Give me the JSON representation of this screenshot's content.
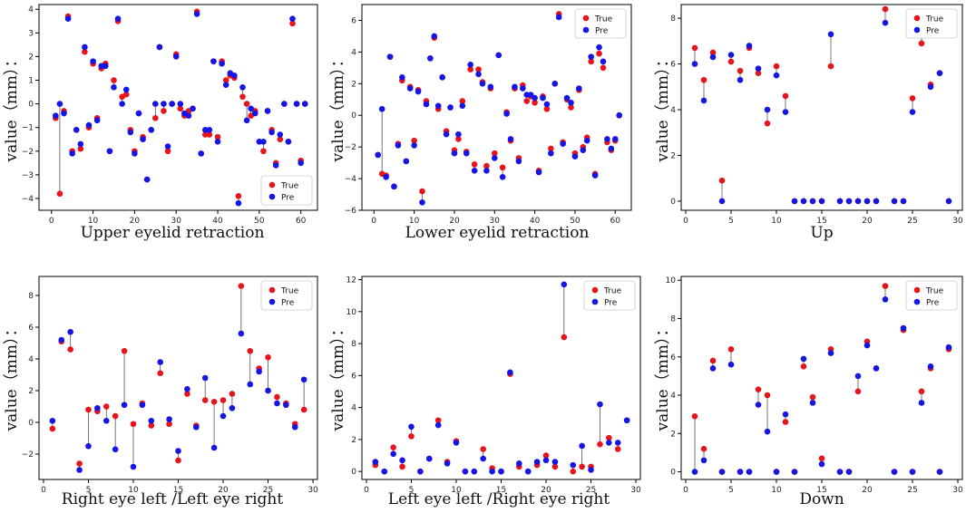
{
  "colors": {
    "true": "#e8141c",
    "pre": "#1515e6",
    "stem": "#555555"
  },
  "chart_data": [
    {
      "type": "scatter",
      "xlabel": "Upper eyelid retraction",
      "ylabel": "value（mm）：",
      "xlim": [
        -3,
        64
      ],
      "ylim": [
        -4.5,
        4.2
      ],
      "xticks": [
        0,
        10,
        20,
        30,
        40,
        50,
        60
      ],
      "yticks": [
        -4,
        -3,
        -2,
        -1,
        0,
        1,
        2,
        3,
        4
      ],
      "legend": "bottom-right",
      "series": [
        {
          "name": "True",
          "x": [
            1,
            2,
            3,
            4,
            5,
            6,
            7,
            8,
            9,
            10,
            11,
            12,
            13,
            14,
            15,
            16,
            17,
            18,
            19,
            20,
            21,
            22,
            23,
            24,
            25,
            26,
            27,
            28,
            29,
            30,
            31,
            32,
            33,
            34,
            35,
            36,
            37,
            38,
            39,
            40,
            41,
            42,
            43,
            44,
            45,
            46,
            47,
            48,
            49,
            50,
            51,
            52,
            53,
            54,
            55,
            56,
            57,
            58,
            59,
            60,
            61
          ],
          "values": [
            -0.6,
            -3.8,
            -0.3,
            3.7,
            -2.0,
            -1.1,
            -1.9,
            2.2,
            -1.0,
            1.7,
            -0.6,
            1.5,
            1.7,
            -2.0,
            1.0,
            3.5,
            0.3,
            0.4,
            -1.1,
            -2.0,
            -0.4,
            -1.4,
            -3.2,
            -1.1,
            -0.6,
            2.4,
            -0.3,
            -2.0,
            0,
            2.1,
            -0.2,
            -0.5,
            -0.3,
            -0.2,
            3.9,
            -2.1,
            -1.3,
            -1.3,
            1.8,
            -1.4,
            1.8,
            1.0,
            1.2,
            1.1,
            -3.9,
            0.3,
            0,
            -0.5,
            -0.3,
            -1.6,
            -2.0,
            -0.3,
            -1.1,
            -2.5,
            -1.5,
            0,
            -1.6,
            3.4,
            0,
            -2.4,
            0
          ]
        },
        {
          "name": "Pre",
          "x": [
            1,
            2,
            3,
            4,
            5,
            6,
            7,
            8,
            9,
            10,
            11,
            12,
            13,
            14,
            15,
            16,
            17,
            18,
            19,
            20,
            21,
            22,
            23,
            24,
            25,
            26,
            27,
            28,
            29,
            30,
            31,
            32,
            33,
            34,
            35,
            36,
            37,
            38,
            39,
            40,
            41,
            42,
            43,
            44,
            45,
            46,
            47,
            48,
            49,
            50,
            51,
            52,
            53,
            54,
            55,
            56,
            57,
            58,
            59,
            60,
            61
          ],
          "values": [
            -0.5,
            0,
            -0.4,
            3.6,
            -2.1,
            -1.1,
            -1.7,
            2.4,
            -0.9,
            1.8,
            -0.7,
            1.6,
            1.6,
            -2.0,
            0.7,
            3.6,
            0,
            0.6,
            -1.2,
            -2.1,
            -0.4,
            -1.5,
            -3.2,
            -1.1,
            0,
            2.4,
            0,
            -1.8,
            0,
            2.0,
            0,
            -0.4,
            -0.5,
            -0.2,
            3.8,
            -2.1,
            -1.1,
            -1.1,
            1.8,
            -1.6,
            1.7,
            0.8,
            1.3,
            1.2,
            -4.2,
            0.7,
            -0.7,
            -0.2,
            -0.4,
            -1.6,
            -1.6,
            -0.3,
            -1.2,
            -2.6,
            -1.3,
            0,
            -1.6,
            3.6,
            0,
            -2.5,
            0
          ]
        }
      ]
    },
    {
      "type": "scatter",
      "xlabel": "Lower eyelid retraction",
      "ylabel": "value（mm）：",
      "xlim": [
        -3,
        64
      ],
      "ylim": [
        -6,
        7
      ],
      "xticks": [
        0,
        10,
        20,
        30,
        40,
        50,
        60
      ],
      "yticks": [
        -6,
        -4,
        -2,
        0,
        2,
        4,
        6
      ],
      "legend": "top-right",
      "series": [
        {
          "name": "True",
          "x": [
            1,
            2,
            3,
            4,
            5,
            6,
            7,
            8,
            9,
            10,
            11,
            12,
            13,
            14,
            15,
            16,
            17,
            18,
            19,
            20,
            21,
            22,
            23,
            24,
            25,
            26,
            27,
            28,
            29,
            30,
            31,
            32,
            33,
            34,
            35,
            36,
            37,
            38,
            39,
            40,
            41,
            42,
            43,
            44,
            45,
            46,
            47,
            48,
            49,
            50,
            51,
            52,
            53,
            54,
            55,
            56,
            57,
            58,
            59,
            60,
            61
          ],
          "values": [
            -2.5,
            -3.7,
            -3.8,
            3.7,
            -4.5,
            -1.8,
            2.2,
            -2.9,
            1.8,
            -1.6,
            1.6,
            -4.8,
            0.9,
            3.6,
            4.9,
            0.4,
            2.4,
            -1.0,
            0.5,
            -2.2,
            -1.5,
            0.9,
            -2.3,
            2.9,
            -3.1,
            2.9,
            2.1,
            -3.2,
            1.7,
            -2.4,
            3.8,
            -3.3,
            0.2,
            -1.6,
            1.7,
            -2.7,
            1.9,
            0.9,
            1.2,
            0.8,
            -3.5,
            1.2,
            0.4,
            -2.1,
            2.0,
            6.4,
            -1.7,
            1.0,
            0.5,
            -2.4,
            1.6,
            -2.0,
            -1.4,
            3.4,
            -3.7,
            3.9,
            3.0,
            -1.7,
            -2.2,
            -1.6,
            0
          ]
        },
        {
          "name": "Pre",
          "x": [
            1,
            2,
            3,
            4,
            5,
            6,
            7,
            8,
            9,
            10,
            11,
            12,
            13,
            14,
            15,
            16,
            17,
            18,
            19,
            20,
            21,
            22,
            23,
            24,
            25,
            26,
            27,
            28,
            29,
            30,
            31,
            32,
            33,
            34,
            35,
            36,
            37,
            38,
            39,
            40,
            41,
            42,
            43,
            44,
            45,
            46,
            47,
            48,
            49,
            50,
            51,
            52,
            53,
            54,
            55,
            56,
            57,
            58,
            59,
            60,
            61
          ],
          "values": [
            -2.5,
            0.4,
            -3.9,
            3.7,
            -4.5,
            -1.9,
            2.4,
            -2.9,
            1.7,
            -1.9,
            1.5,
            -5.5,
            0.7,
            3.6,
            5.0,
            0.6,
            2.4,
            -1.2,
            0.5,
            -2.4,
            -1.2,
            0.6,
            -2.4,
            3.2,
            -3.5,
            2.6,
            2.0,
            -3.5,
            1.8,
            -2.7,
            3.8,
            -3.9,
            0.1,
            -1.5,
            1.8,
            -2.9,
            1.7,
            1.3,
            1.3,
            1.1,
            -3.6,
            1.1,
            0.7,
            -2.4,
            2.0,
            6.2,
            -1.8,
            1.1,
            0.8,
            -2.6,
            1.7,
            -2.2,
            -1.6,
            3.7,
            -3.8,
            4.3,
            3.4,
            -1.5,
            -2.1,
            -1.5,
            0
          ]
        }
      ]
    },
    {
      "type": "scatter",
      "xlabel": "Up",
      "ylabel": "value（mm）：",
      "xlim": [
        -0.5,
        30.5
      ],
      "ylim": [
        -0.4,
        8.6
      ],
      "xticks": [
        0,
        5,
        10,
        15,
        20,
        25,
        30
      ],
      "yticks": [
        0,
        2,
        4,
        6,
        8
      ],
      "legend": "top-right",
      "series": [
        {
          "name": "True",
          "x": [
            1,
            2,
            3,
            4,
            5,
            6,
            7,
            8,
            9,
            10,
            11,
            12,
            13,
            14,
            15,
            16,
            17,
            18,
            19,
            20,
            21,
            22,
            23,
            24,
            25,
            26,
            27,
            28,
            29
          ],
          "values": [
            6.7,
            5.3,
            6.5,
            0.9,
            6.1,
            5.7,
            6.7,
            5.6,
            3.4,
            5.9,
            4.6,
            0,
            0,
            0,
            0,
            5.9,
            0,
            0,
            0,
            0,
            0,
            8.4,
            0,
            0,
            4.5,
            6.9,
            5.1,
            5.6,
            0
          ]
        },
        {
          "name": "Pre",
          "x": [
            1,
            2,
            3,
            4,
            5,
            6,
            7,
            8,
            9,
            10,
            11,
            12,
            13,
            14,
            15,
            16,
            17,
            18,
            19,
            20,
            21,
            22,
            23,
            24,
            25,
            26,
            27,
            28,
            29
          ],
          "values": [
            6.0,
            4.4,
            6.3,
            0,
            6.4,
            5.3,
            6.8,
            5.8,
            4.0,
            5.5,
            3.9,
            0,
            0,
            0,
            0,
            7.3,
            0,
            0,
            0,
            0,
            0,
            7.8,
            0,
            0,
            3.9,
            7.4,
            5.0,
            5.6,
            0
          ]
        }
      ]
    },
    {
      "type": "scatter",
      "xlabel": "Right eye left /Left eye right",
      "ylabel": "value（mm）：",
      "xlim": [
        -0.5,
        30.5
      ],
      "ylim": [
        -3.6,
        9.2
      ],
      "xticks": [
        0,
        5,
        10,
        15,
        20,
        25,
        30
      ],
      "yticks": [
        -2,
        0,
        2,
        4,
        6,
        8
      ],
      "legend": "top-right",
      "series": [
        {
          "name": "True",
          "x": [
            1,
            2,
            3,
            4,
            5,
            6,
            7,
            8,
            9,
            10,
            11,
            12,
            13,
            14,
            15,
            16,
            17,
            18,
            19,
            20,
            21,
            22,
            23,
            24,
            25,
            26,
            27,
            28,
            29
          ],
          "values": [
            -0.4,
            5.1,
            4.6,
            -2.6,
            0.8,
            0.7,
            1.0,
            0.4,
            4.5,
            -0.1,
            1.2,
            -0.2,
            3.1,
            -0.1,
            -2.4,
            1.8,
            -0.2,
            1.4,
            1.3,
            1.4,
            1.8,
            8.6,
            4.5,
            3.4,
            4.1,
            1.6,
            1.2,
            -0.1,
            0.8
          ]
        },
        {
          "name": "Pre",
          "x": [
            1,
            2,
            3,
            4,
            5,
            6,
            7,
            8,
            9,
            10,
            11,
            12,
            13,
            14,
            15,
            16,
            17,
            18,
            19,
            20,
            21,
            22,
            23,
            24,
            25,
            26,
            27,
            28,
            29
          ],
          "values": [
            0.1,
            5.2,
            5.7,
            -3.0,
            -1.5,
            0.9,
            0.1,
            -1.7,
            1.1,
            -2.8,
            1.1,
            0.1,
            3.8,
            0.2,
            -1.8,
            2.1,
            -0.3,
            2.8,
            -1.6,
            0.4,
            0.9,
            5.6,
            2.4,
            3.2,
            2.0,
            1.2,
            1.1,
            -0.3,
            2.7
          ]
        }
      ]
    },
    {
      "type": "scatter",
      "xlabel": "Left eye left /Right eye right",
      "ylabel": "value（mm）：",
      "xlim": [
        -0.5,
        30.5
      ],
      "ylim": [
        -0.5,
        12.2
      ],
      "xticks": [
        0,
        5,
        10,
        15,
        20,
        25,
        30
      ],
      "yticks": [
        0,
        2,
        4,
        6,
        8,
        10,
        12
      ],
      "legend": "top-right",
      "series": [
        {
          "name": "True",
          "x": [
            1,
            2,
            3,
            4,
            5,
            6,
            7,
            8,
            9,
            10,
            11,
            12,
            13,
            14,
            15,
            16,
            17,
            18,
            19,
            20,
            21,
            22,
            23,
            24,
            25,
            26,
            27,
            28,
            29
          ],
          "values": [
            0.4,
            0,
            1.5,
            0.3,
            2.2,
            0,
            0.8,
            3.2,
            0.6,
            1.9,
            0,
            0,
            1.4,
            0.2,
            0,
            6.1,
            0.3,
            0,
            0.4,
            1.0,
            0.3,
            8.4,
            0,
            0.3,
            0.3,
            1.7,
            2.1,
            1.4,
            3.2
          ]
        },
        {
          "name": "Pre",
          "x": [
            1,
            2,
            3,
            4,
            5,
            6,
            7,
            8,
            9,
            10,
            11,
            12,
            13,
            14,
            15,
            16,
            17,
            18,
            19,
            20,
            21,
            22,
            23,
            24,
            25,
            26,
            27,
            28,
            29
          ],
          "values": [
            0.6,
            0,
            1.1,
            0.7,
            2.8,
            0,
            0.8,
            2.9,
            0.5,
            1.8,
            0,
            0,
            0.8,
            0,
            0,
            6.2,
            0.5,
            0,
            0.6,
            0.7,
            0.6,
            11.7,
            0.4,
            1.6,
            0.1,
            4.2,
            1.8,
            1.8,
            3.2
          ]
        }
      ]
    },
    {
      "type": "scatter",
      "xlabel": "Down",
      "ylabel": "value（mm）：",
      "xlim": [
        -0.5,
        30.5
      ],
      "ylim": [
        -0.4,
        10.2
      ],
      "xticks": [
        0,
        5,
        10,
        15,
        20,
        25,
        30
      ],
      "yticks": [
        0,
        2,
        4,
        6,
        8,
        10
      ],
      "legend": "top-right",
      "series": [
        {
          "name": "True",
          "x": [
            1,
            2,
            3,
            4,
            5,
            6,
            7,
            8,
            9,
            10,
            11,
            12,
            13,
            14,
            15,
            16,
            17,
            18,
            19,
            20,
            21,
            22,
            23,
            24,
            25,
            26,
            27,
            28,
            29
          ],
          "values": [
            2.9,
            1.2,
            5.8,
            0,
            6.4,
            0,
            0,
            4.3,
            4.0,
            0,
            2.6,
            0,
            5.5,
            3.9,
            0.7,
            6.4,
            0,
            0,
            4.2,
            6.8,
            5.4,
            9.7,
            0,
            7.4,
            0,
            4.2,
            5.4,
            0,
            6.4
          ]
        },
        {
          "name": "Pre",
          "x": [
            1,
            2,
            3,
            4,
            5,
            6,
            7,
            8,
            9,
            10,
            11,
            12,
            13,
            14,
            15,
            16,
            17,
            18,
            19,
            20,
            21,
            22,
            23,
            24,
            25,
            26,
            27,
            28,
            29
          ],
          "values": [
            0,
            0.6,
            5.4,
            0,
            5.6,
            0,
            0,
            3.5,
            2.1,
            0,
            3.0,
            0,
            5.9,
            3.6,
            0.4,
            6.2,
            0,
            0,
            5.0,
            6.6,
            5.4,
            9.0,
            0,
            7.5,
            0,
            3.6,
            5.5,
            0,
            6.5
          ]
        }
      ]
    }
  ]
}
